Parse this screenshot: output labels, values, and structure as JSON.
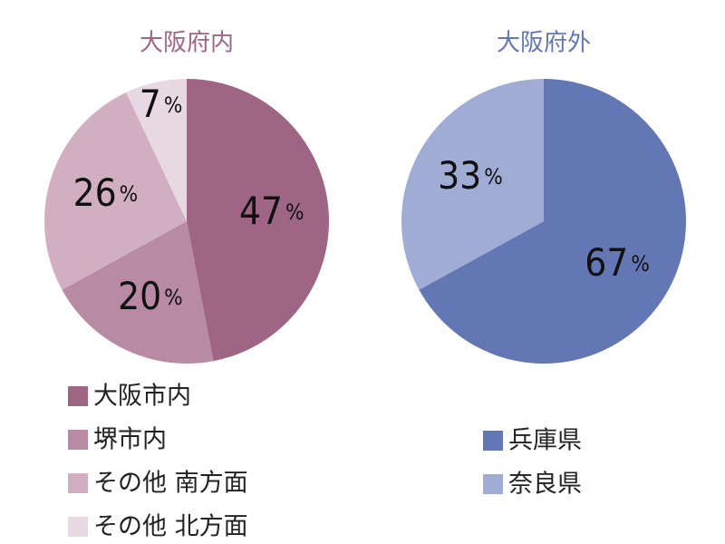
{
  "chart_data": [
    {
      "type": "pie",
      "title": "大阪府内",
      "categories": [
        "大阪市内",
        "堺市内",
        "その他 南方面",
        "その他 北方面"
      ],
      "values": [
        47,
        20,
        26,
        7
      ],
      "value_labels": [
        "47%",
        "20%",
        "26%",
        "7%"
      ],
      "colors": [
        "#9e6584",
        "#b88aa3",
        "#d1afc1",
        "#e8d8e1"
      ],
      "title_color": "#9e6584"
    },
    {
      "type": "pie",
      "title": "大阪府外",
      "categories": [
        "兵庫県",
        "奈良県"
      ],
      "values": [
        67,
        33
      ],
      "value_labels": [
        "67%",
        "33%"
      ],
      "colors": [
        "#6477b5",
        "#a1acd4"
      ],
      "title_color": "#6477b5"
    }
  ]
}
